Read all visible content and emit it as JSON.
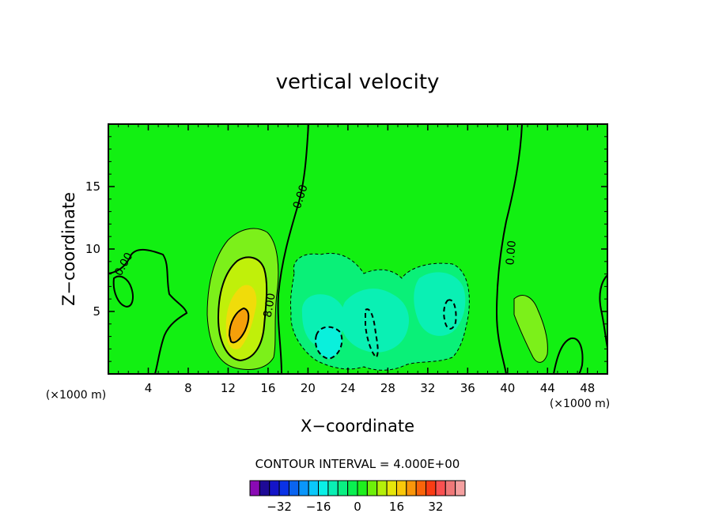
{
  "chart_data": {
    "type": "heatmap",
    "title": "vertical velocity",
    "xlabel": "X−coordinate",
    "ylabel": "Z−coordinate",
    "x_unit_left": "(×1000 m)",
    "x_unit_right": "(×1000 m)",
    "x_ticks": [
      4,
      8,
      12,
      16,
      20,
      24,
      28,
      32,
      36,
      40,
      44,
      48
    ],
    "y_ticks": [
      5,
      10,
      15
    ],
    "xlim": [
      0,
      50
    ],
    "ylim": [
      0,
      20
    ],
    "contour_interval_text": "CONTOUR INTERVAL = 4.000E+00",
    "contour_labels": [
      {
        "text": "0.00",
        "x": 19.2,
        "y": 14.2,
        "angle": -72
      },
      {
        "text": "0.00",
        "x": 40.3,
        "y": 9.7,
        "angle": -85
      },
      {
        "text": "0.00",
        "x": 1.5,
        "y": 8.8,
        "angle": -60
      },
      {
        "text": "8.00",
        "x": 16.1,
        "y": 5.5,
        "angle": -80
      }
    ],
    "colorbar": {
      "colors": [
        "#8a0ab4",
        "#1e0a96",
        "#1414c8",
        "#0a32e6",
        "#0a64f0",
        "#0a96fa",
        "#0ac8fa",
        "#0af0e6",
        "#0af0b4",
        "#0af082",
        "#0af050",
        "#1ef01e",
        "#6ef00a",
        "#b4f00a",
        "#e6e60a",
        "#fac80a",
        "#fa960a",
        "#fa640a",
        "#fa3c14",
        "#fa5050",
        "#f07878",
        "#f5a0a0"
      ],
      "tick_labels": [
        "−32",
        "−16",
        "0",
        "16",
        "32"
      ],
      "tick_values": [
        -32,
        -16,
        0,
        16,
        32
      ],
      "vmin": -44,
      "vmax": 44
    },
    "colors": {
      "background": "#12f012",
      "positive_weak": "#7cf01a",
      "positive_mid": "#c0f00a",
      "positive_strong": "#f0dc0a",
      "positive_peak": "#f5a00a",
      "negative_weak": "#0af078",
      "negative_mid": "#0af0b4",
      "negative_strong": "#0af0dc"
    }
  }
}
